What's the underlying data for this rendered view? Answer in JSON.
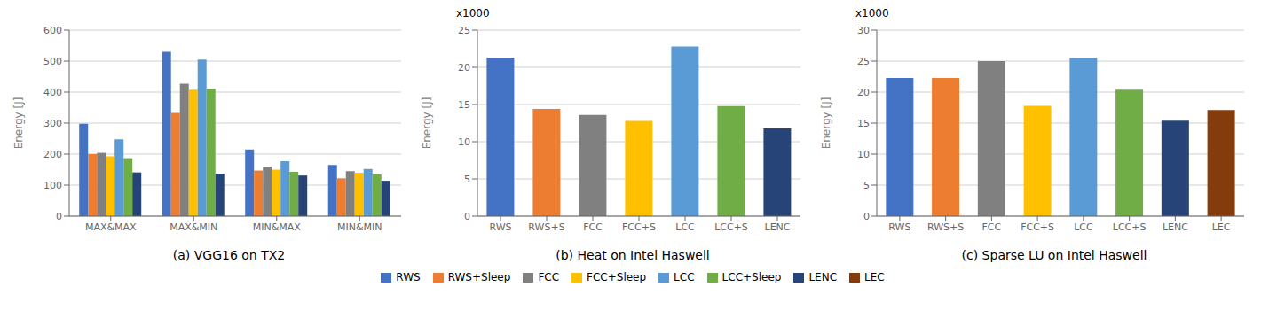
{
  "chart_data": [
    {
      "type": "bar",
      "title": "(a) VGG16 on TX2",
      "ylabel": "Energy [J]",
      "categories": [
        "MAX&MAX",
        "MAX&MIN",
        "MIN&MAX",
        "MIN&MIN"
      ],
      "series": [
        {
          "name": "RWS",
          "color": "#4472c4",
          "values": [
            298,
            530,
            215,
            165
          ]
        },
        {
          "name": "RWS+Sleep",
          "color": "#ed7d31",
          "values": [
            200,
            333,
            147,
            122
          ]
        },
        {
          "name": "FCC",
          "color": "#808080",
          "values": [
            204,
            427,
            160,
            145
          ]
        },
        {
          "name": "FCC+Sleep",
          "color": "#ffc000",
          "values": [
            193,
            408,
            150,
            140
          ]
        },
        {
          "name": "LCC",
          "color": "#5b9bd5",
          "values": [
            248,
            505,
            177,
            152
          ]
        },
        {
          "name": "LCC+Sleep",
          "color": "#70ad47",
          "values": [
            187,
            411,
            143,
            135
          ]
        },
        {
          "name": "LENC",
          "color": "#264478",
          "values": [
            141,
            137,
            131,
            114
          ]
        }
      ],
      "ylim": [
        0,
        600
      ],
      "yticks": [
        0,
        100,
        200,
        300,
        400,
        500,
        600
      ],
      "grid": true
    },
    {
      "type": "bar",
      "title": "(b) Heat on Intel Haswell",
      "ylabel": "Energy [J]",
      "annotation": "x1000",
      "categories": [
        "RWS",
        "RWS+S",
        "FCC",
        "FCC+S",
        "LCC",
        "LCC+S",
        "LENC"
      ],
      "values": [
        21.3,
        14.4,
        13.6,
        12.8,
        22.8,
        14.8,
        11.8
      ],
      "colors": [
        "#4472c4",
        "#ed7d31",
        "#808080",
        "#ffc000",
        "#5b9bd5",
        "#70ad47",
        "#264478"
      ],
      "ylim": [
        0,
        25
      ],
      "yticks": [
        0,
        5,
        10,
        15,
        20,
        25
      ],
      "grid": true
    },
    {
      "type": "bar",
      "title": "(c) Sparse LU on Intel Haswell",
      "ylabel": "Energy [J]",
      "annotation": "x1000",
      "categories": [
        "RWS",
        "RWS+S",
        "FCC",
        "FCC+S",
        "LCC",
        "LCC+S",
        "LENC",
        "LEC"
      ],
      "values": [
        22.3,
        22.3,
        25.0,
        17.8,
        25.5,
        20.4,
        15.4,
        17.1
      ],
      "colors": [
        "#4472c4",
        "#ed7d31",
        "#808080",
        "#ffc000",
        "#5b9bd5",
        "#70ad47",
        "#264478",
        "#843c0c"
      ],
      "ylim": [
        0,
        30
      ],
      "yticks": [
        0,
        5,
        10,
        15,
        20,
        25,
        30
      ],
      "grid": true
    }
  ],
  "legend": {
    "loc": "lower center",
    "series": [
      {
        "name": "RWS",
        "color": "#4472c4"
      },
      {
        "name": "RWS+Sleep",
        "color": "#ed7d31"
      },
      {
        "name": "FCC",
        "color": "#808080"
      },
      {
        "name": "FCC+Sleep",
        "color": "#ffc000"
      },
      {
        "name": "LCC",
        "color": "#5b9bd5"
      },
      {
        "name": "LCC+Sleep",
        "color": "#70ad47"
      },
      {
        "name": "LENC",
        "color": "#264478"
      },
      {
        "name": "LEC",
        "color": "#843c0c"
      }
    ]
  }
}
